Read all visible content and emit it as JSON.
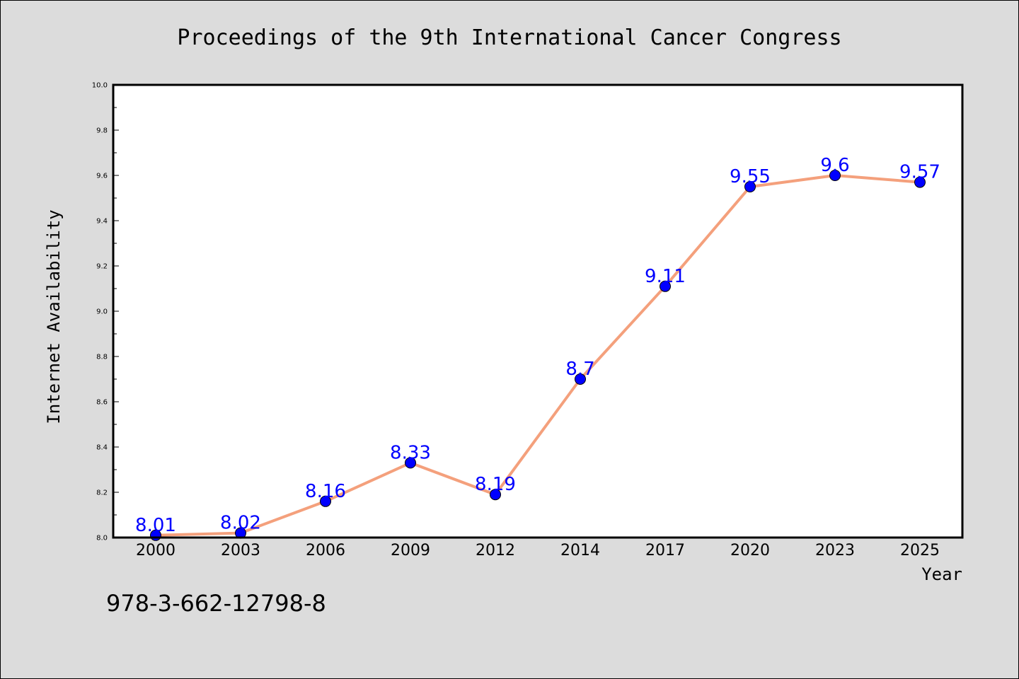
{
  "footer_code": "978-3-662-12798-8",
  "colors": {
    "background": "#dcdcdc",
    "plot_background": "#ffffff",
    "line": "#f4a07c",
    "marker": "#0000ff",
    "data_label": "#0000ff"
  },
  "chart_data": {
    "type": "line",
    "title": "Proceedings of the 9th International Cancer Congress",
    "xlabel": "Year",
    "ylabel": "Internet Availability",
    "categories": [
      "2000",
      "2003",
      "2006",
      "2009",
      "2012",
      "2014",
      "2017",
      "2020",
      "2023",
      "2025"
    ],
    "series": [
      {
        "values": [
          8.01,
          8.02,
          8.16,
          8.33,
          8.19,
          8.7,
          9.11,
          9.55,
          9.6,
          9.57
        ]
      }
    ],
    "data_labels": [
      "8.01",
      "8.02",
      "8.16",
      "8.33",
      "8.19",
      "8.7",
      "9.11",
      "9.55",
      "9.6",
      "9.57"
    ],
    "ylim": [
      8.0,
      10.0
    ],
    "yticks": [
      "8.0",
      "8.2",
      "8.4",
      "8.6",
      "8.8",
      "9.0",
      "9.2",
      "9.4",
      "9.6",
      "9.8",
      "10.0"
    ],
    "grid": false,
    "legend": "none"
  }
}
